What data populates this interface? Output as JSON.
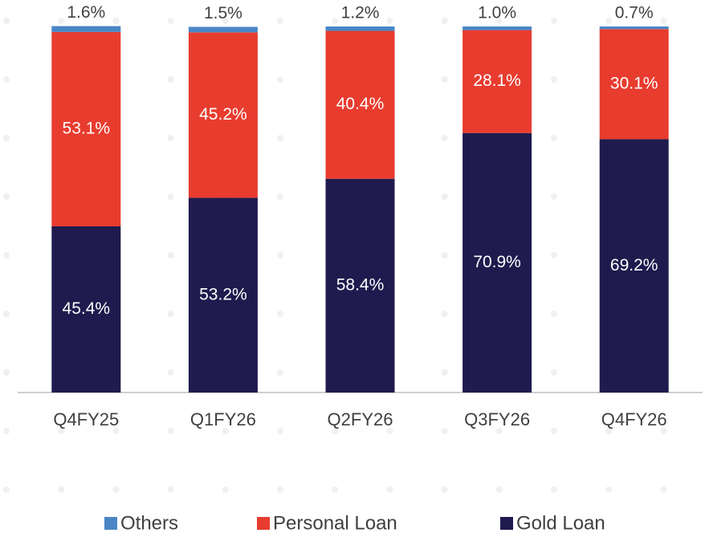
{
  "chart_data": {
    "type": "stacked_bar",
    "categories": [
      "Q4FY25",
      "Q1FY26",
      "Q2FY26",
      "Q3FY26",
      "Q4FY26"
    ],
    "series": [
      {
        "name": "Gold Loan",
        "color": "#1f1b4e",
        "values": [
          45.4,
          53.2,
          58.4,
          70.9,
          69.2
        ],
        "value_labels": [
          "45.4%",
          "53.2%",
          "58.4%",
          "70.9%",
          "69.2%"
        ]
      },
      {
        "name": "Personal Loan",
        "color": "#e83c2f",
        "values": [
          53.1,
          45.2,
          40.4,
          28.1,
          30.1
        ],
        "value_labels": [
          "53.1%",
          "45.2%",
          "40.4%",
          "28.1%",
          "30.1%"
        ]
      },
      {
        "name": "Others",
        "color": "#4a86c6",
        "values": [
          1.6,
          1.5,
          1.2,
          1.0,
          0.7
        ],
        "value_labels": [
          "1.6%",
          "1.5%",
          "1.2%",
          "1.0%",
          "0.7%"
        ]
      }
    ],
    "ylim": [
      0,
      100
    ]
  }
}
